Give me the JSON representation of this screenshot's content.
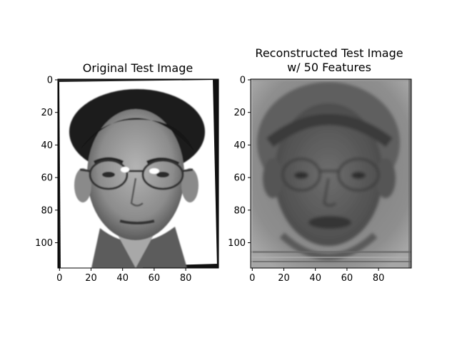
{
  "figure": {
    "panels": [
      {
        "title_lines": [
          "Original Test Image"
        ],
        "xticks": [
          "0",
          "20",
          "40",
          "60",
          "80"
        ],
        "yticks": [
          "0",
          "20",
          "40",
          "60",
          "80",
          "100"
        ],
        "image": "grayscale face photo, frontal, man with glasses",
        "brightness": "high contrast"
      },
      {
        "title_lines": [
          "Reconstructed Test Image",
          "w/ 50 Features"
        ],
        "xticks": [
          "0",
          "20",
          "40",
          "60",
          "80"
        ],
        "yticks": [
          "0",
          "20",
          "40",
          "60",
          "80",
          "100"
        ],
        "image": "grayscale eigenface reconstruction, blurry face with glasses",
        "brightness": "low contrast"
      }
    ]
  }
}
